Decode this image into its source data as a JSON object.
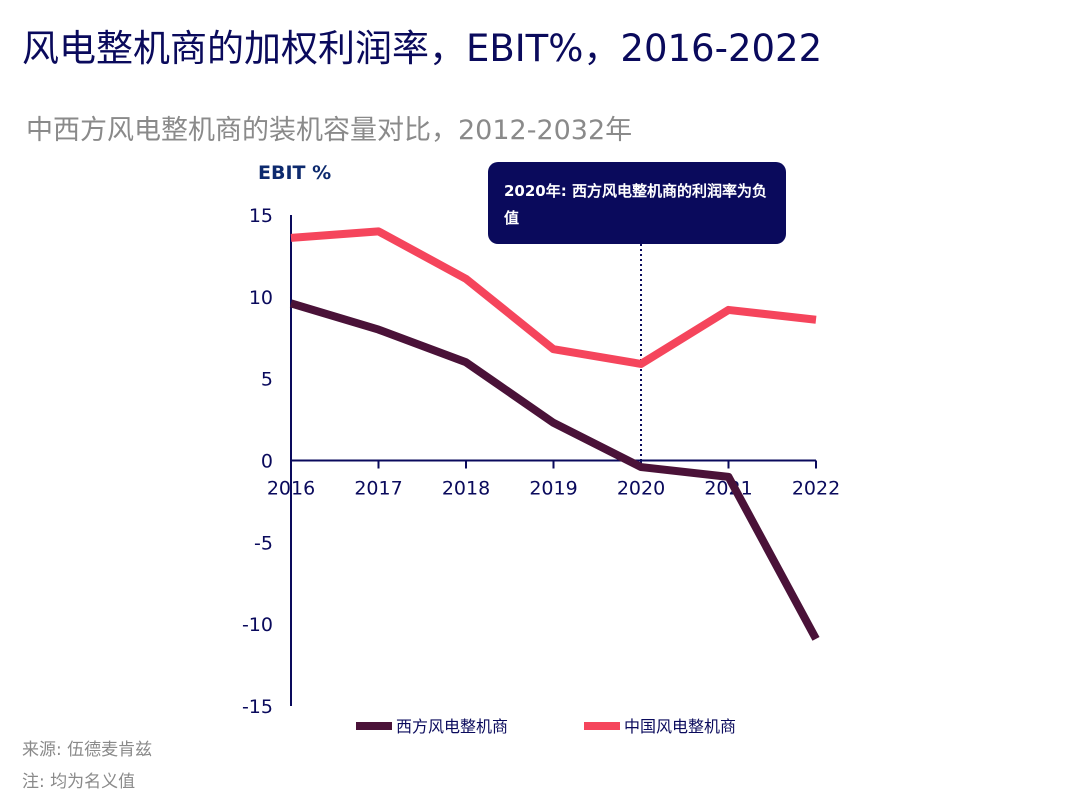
{
  "title": "风电整机商的加权利润率，EBIT%，2016-2022",
  "subtitle": "中西方风电整机商的装机容量对比，2012-2032年",
  "callout": "2020年: 西方风电整机商的利润率为负值",
  "source": "来源: 伍德麦肯兹",
  "note": "注: 均为名义值",
  "chart_data": {
    "type": "line",
    "ylabel": "EBIT %",
    "x": [
      "2016",
      "2017",
      "2018",
      "2019",
      "2020",
      "2021",
      "2022"
    ],
    "ylim": [
      -15,
      15
    ],
    "yticks": [
      15,
      10,
      5,
      0,
      -5,
      -10,
      -15
    ],
    "grid": false,
    "legend_placement": "bottom",
    "annotation_x": "2020",
    "series": [
      {
        "name": "西方风电整机商",
        "color": "#4a1238",
        "values": [
          9.6,
          8.0,
          6.0,
          2.3,
          -0.4,
          -1.0,
          -10.9
        ]
      },
      {
        "name": "中国风电整机商",
        "color": "#f5455c",
        "values": [
          13.6,
          14.0,
          11.1,
          6.8,
          5.9,
          9.2,
          8.6
        ]
      }
    ]
  }
}
